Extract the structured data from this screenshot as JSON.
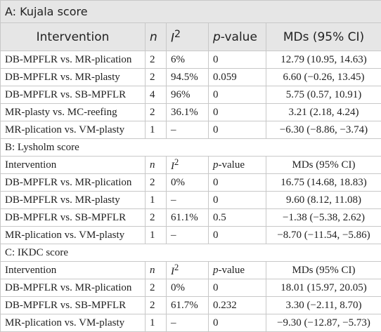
{
  "sections": [
    {
      "title": "A: Kujala score",
      "header": {
        "intervention": "Intervention",
        "n": "n",
        "i2": {
          "base": "I",
          "sup": "2"
        },
        "p_value": {
          "italic": "p",
          "rest": "-value"
        },
        "mds": "MDs (95% CI)"
      },
      "rows": [
        [
          "DB-MPFLR vs. MR-plication",
          "2",
          "6%",
          "0",
          "12.79 (10.95, 14.63)"
        ],
        [
          "DB-MPFLR vs. MR-plasty",
          "2",
          "94.5%",
          "0.059",
          "6.60 (−0.26, 13.45)"
        ],
        [
          "DB-MPFLR vs. SB-MPFLR",
          "4",
          "96%",
          "0",
          "5.75 (0.57, 10.91)"
        ],
        [
          "MR-plasty vs. MC-reefing",
          "2",
          "36.1%",
          "0",
          "3.21 (2.18, 4.24)"
        ],
        [
          "MR-plication vs. VM-plasty",
          "1",
          "–",
          "0",
          "−6.30 (−8.86, −3.74)"
        ]
      ]
    },
    {
      "title": "B: Lysholm score",
      "header": {
        "intervention": "Intervention",
        "n": "n",
        "i2": {
          "base": "I",
          "sup": "2"
        },
        "p_value": {
          "italic": "p",
          "rest": "-value"
        },
        "mds": "MDs (95% CI)"
      },
      "rows": [
        [
          "DB-MPFLR vs. MR-plication",
          "2",
          "0%",
          "0",
          "16.75 (14.68, 18.83)"
        ],
        [
          "DB-MPFLR vs. MR-plasty",
          "1",
          "–",
          "0",
          "9.60 (8.12, 11.08)"
        ],
        [
          "DB-MPFLR vs. SB-MPFLR",
          "2",
          "61.1%",
          "0.5",
          "−1.38 (−5.38, 2.62)"
        ],
        [
          "MR-plication vs. VM-plasty",
          "1",
          "–",
          "0",
          "−8.70 (−11.54, −5.86)"
        ]
      ]
    },
    {
      "title": "C: IKDC score",
      "header": {
        "intervention": "Intervention",
        "n": "n",
        "i2": {
          "base": "I",
          "sup": "2"
        },
        "p_value": {
          "italic": "p",
          "rest": "-value"
        },
        "mds": "MDs (95% CI)"
      },
      "rows": [
        [
          "DB-MPFLR vs. MR-plication",
          "2",
          "0%",
          "0",
          "18.01 (15.97, 20.05)"
        ],
        [
          "DB-MPFLR vs. SB-MPFLR",
          "2",
          "61.7%",
          "0.232",
          "3.30 (−2.11, 8.70)"
        ],
        [
          "MR-plication vs. VM-plasty",
          "1",
          "–",
          "0",
          "−9.30 (−12.87, −5.73)"
        ]
      ]
    }
  ]
}
